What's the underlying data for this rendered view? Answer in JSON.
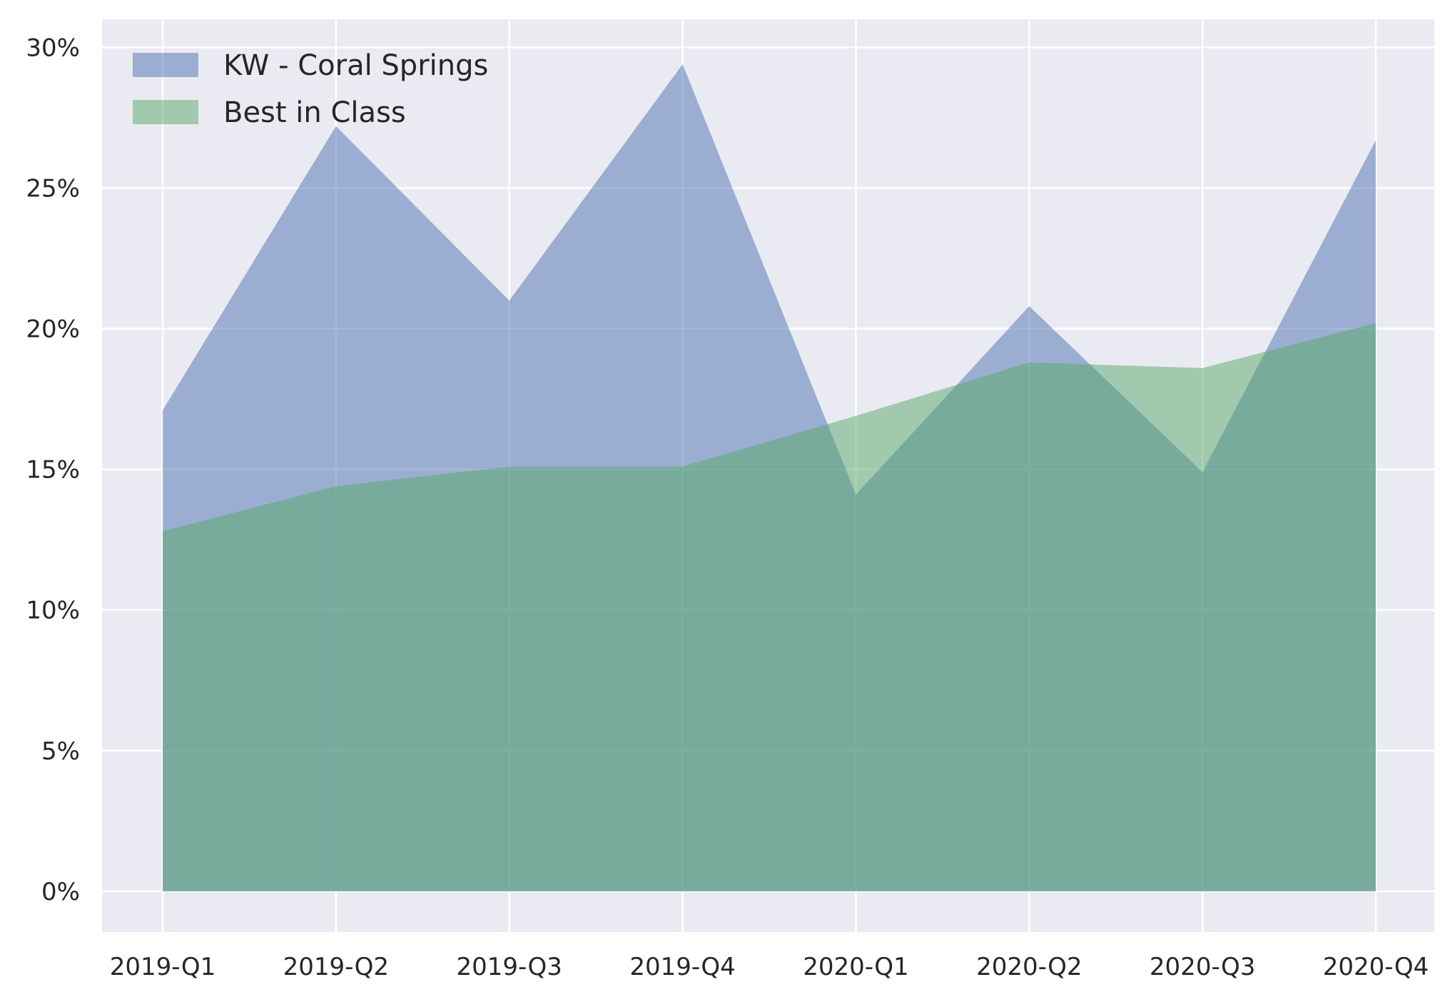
{
  "chart_data": {
    "type": "area",
    "categories": [
      "2019-Q1",
      "2019-Q2",
      "2019-Q3",
      "2019-Q4",
      "2020-Q1",
      "2020-Q2",
      "2020-Q3",
      "2020-Q4"
    ],
    "series": [
      {
        "name": "KW - Coral Springs",
        "values": [
          17.1,
          27.2,
          21.0,
          29.4,
          14.1,
          20.8,
          14.9,
          26.7
        ],
        "color": "#4c72b0"
      },
      {
        "name": "Best in Class",
        "values": [
          12.8,
          14.4,
          15.1,
          15.1,
          16.9,
          18.8,
          18.6,
          20.2
        ],
        "color": "#55a868"
      }
    ],
    "y_ticks": [
      "0%",
      "5%",
      "10%",
      "15%",
      "20%",
      "25%",
      "30%"
    ],
    "y_tick_values": [
      0,
      5,
      10,
      15,
      20,
      25,
      30
    ],
    "ylim": [
      -1.45,
      31
    ],
    "xlabel": "",
    "ylabel": "",
    "title": "",
    "grid": true,
    "legend_position": "upper-left",
    "background_color": "#eaeaf2",
    "grid_color": "#ffffff",
    "fill_opacity": 0.5
  }
}
